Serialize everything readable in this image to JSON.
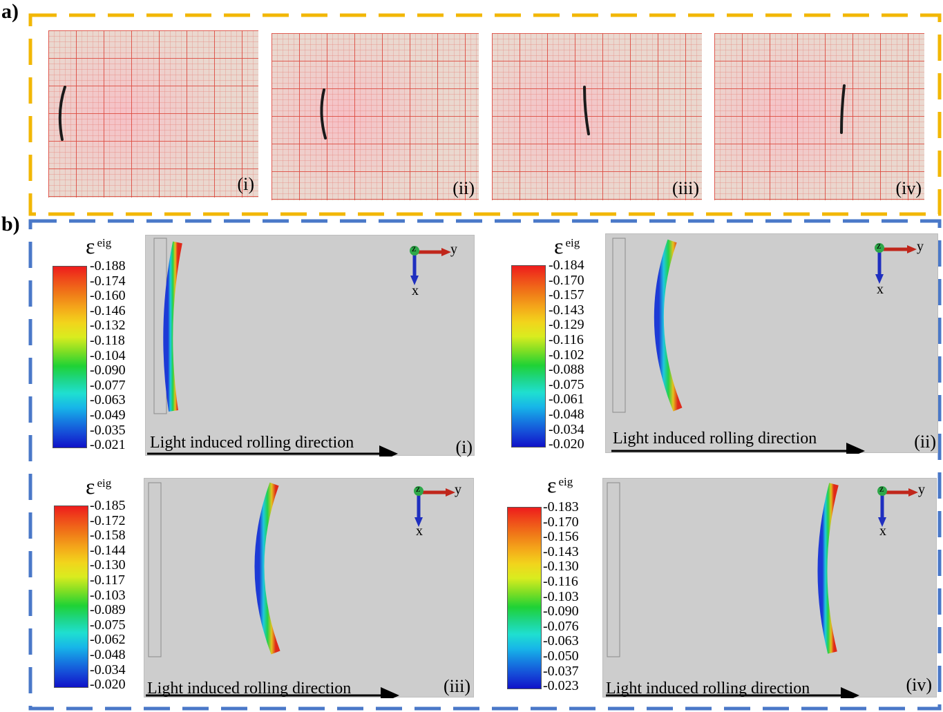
{
  "figure": {
    "panel_a_label": "a)",
    "panel_b_label": "b)",
    "colors": {
      "panel_a_border": "#f2b705",
      "panel_b_border": "#4a78c8",
      "grid_line": "#e0584f",
      "photo_bg": "#f0dad4"
    },
    "photos": [
      {
        "label": "(i)"
      },
      {
        "label": "(ii)"
      },
      {
        "label": "(iii)"
      },
      {
        "label": "(iv)"
      }
    ],
    "simulations": [
      {
        "label": "(i)",
        "eps": "ε",
        "eps_sup": "eig",
        "direction": "Light induced rolling direction",
        "ticks": [
          "-0.188",
          "-0.174",
          "-0.160",
          "-0.146",
          "-0.132",
          "-0.118",
          "-0.104",
          "-0.090",
          "-0.077",
          "-0.063",
          "-0.049",
          "-0.035",
          "-0.021"
        ],
        "axis": {
          "z": "z",
          "y": "y",
          "x": "x"
        }
      },
      {
        "label": "(ii)",
        "eps": "ε",
        "eps_sup": "eig",
        "direction": "Light induced rolling direction",
        "ticks": [
          "-0.184",
          "-0.170",
          "-0.157",
          "-0.143",
          "-0.129",
          "-0.116",
          "-0.102",
          "-0.088",
          "-0.075",
          "-0.061",
          "-0.048",
          "-0.034",
          "-0.020"
        ],
        "axis": {
          "z": "z",
          "y": "y",
          "x": "x"
        }
      },
      {
        "label": "(iii)",
        "eps": "ε",
        "eps_sup": "eig",
        "direction": "Light induced rolling direction",
        "ticks": [
          "-0.185",
          "-0.172",
          "-0.158",
          "-0.144",
          "-0.130",
          "-0.117",
          "-0.103",
          "-0.089",
          "-0.075",
          "-0.062",
          "-0.048",
          "-0.034",
          "-0.020"
        ],
        "axis": {
          "z": "z",
          "y": "y",
          "x": "x"
        }
      },
      {
        "label": "(iv)",
        "eps": "ε",
        "eps_sup": "eig",
        "direction": "Light induced rolling direction",
        "ticks": [
          "-0.183",
          "-0.170",
          "-0.156",
          "-0.143",
          "-0.130",
          "-0.116",
          "-0.103",
          "-0.090",
          "-0.076",
          "-0.063",
          "-0.050",
          "-0.037",
          "-0.023"
        ],
        "axis": {
          "z": "z",
          "y": "y",
          "x": "x"
        }
      }
    ]
  }
}
